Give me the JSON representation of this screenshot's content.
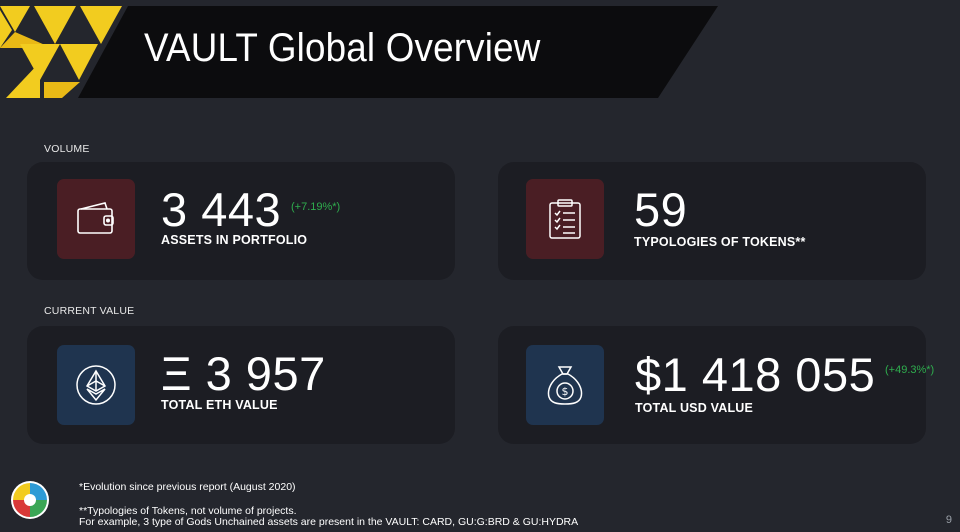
{
  "header": {
    "title": "VAULT Global Overview"
  },
  "sections": {
    "volume_label": "VOLUME",
    "current_value_label": "CURRENT VALUE"
  },
  "cards": {
    "assets": {
      "value": "3 443",
      "change": "(+7.19%*)",
      "label": "ASSETS IN PORTFOLIO",
      "icon": "wallet-icon"
    },
    "typologies": {
      "value": "59",
      "label": "TYPOLOGIES OF TOKENS**",
      "icon": "clipboard-checklist-icon"
    },
    "eth": {
      "value": "Ξ 3 957",
      "label": "TOTAL ETH VALUE",
      "icon": "ethereum-icon"
    },
    "usd": {
      "value": "$1 418 055",
      "change": "(+49.3%*)",
      "label": "TOTAL USD VALUE",
      "icon": "money-bag-icon"
    }
  },
  "footnotes": {
    "evolution": "*Evolution since previous report (August 2020)",
    "typologies_line1": "**Typologies of Tokens, not volume of projects.",
    "typologies_line2": "For example, 3 type of Gods Unchained assets are present in the VAULT: CARD,  GU:G:BRD & GU:HYDRA"
  },
  "page_number": "9",
  "colors": {
    "background": "#24262d",
    "card": "#1c1d23",
    "accent_yellow": "#f2cc1f",
    "icon_red": "#4a1e24",
    "icon_blue": "#1f344f",
    "positive": "#2fae4e"
  }
}
